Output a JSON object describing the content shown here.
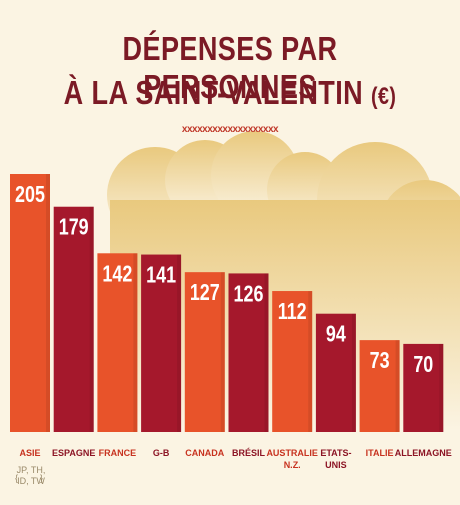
{
  "title": {
    "line1": "DÉPENSES PAR PERSONNES",
    "line2": "À LA SAINT-VALENTIN",
    "unit": "(€)"
  },
  "divider": "xxxxxxxxxxxxxxxxxxx",
  "colors": {
    "title": "#7b1a25",
    "divider": "#c0392b",
    "background": "#fbf4e3",
    "cloud": "#e9cf8d",
    "bar_orange": "#e8532a",
    "bar_red": "#a5182c",
    "label_orange": "#c7321f",
    "label_red": "#8c1424"
  },
  "chart_data": {
    "type": "bar",
    "categories": [
      "ASIE",
      "ESPAGNE",
      "FRANCE",
      "G-B",
      "CANADA",
      "BRÉSIL",
      "AUSTRALIE N.Z.",
      "ETATS-UNIS",
      "ITALIE",
      "ALLEMAGNE"
    ],
    "values": [
      205,
      179,
      142,
      141,
      127,
      126,
      112,
      94,
      73,
      70
    ],
    "category_lines": [
      [
        "ASIE"
      ],
      [
        "ESPAGNE"
      ],
      [
        "FRANCE"
      ],
      [
        "G-B"
      ],
      [
        "CANADA"
      ],
      [
        "BRÉSIL"
      ],
      [
        "AUSTRALIE",
        "N.Z."
      ],
      [
        "ETATS-",
        "UNIS"
      ],
      [
        "ITALIE"
      ],
      [
        "ALLEMAGNE"
      ]
    ],
    "bar_colors": [
      "orange",
      "red",
      "orange",
      "red",
      "orange",
      "red",
      "orange",
      "red",
      "orange",
      "red"
    ],
    "annotation": {
      "category": "ASIE",
      "lines": [
        "JP, TH,",
        "ID, TW"
      ]
    },
    "ylim": [
      0,
      205
    ],
    "grid": false,
    "legend": "none",
    "xlabel": "",
    "ylabel": ""
  }
}
